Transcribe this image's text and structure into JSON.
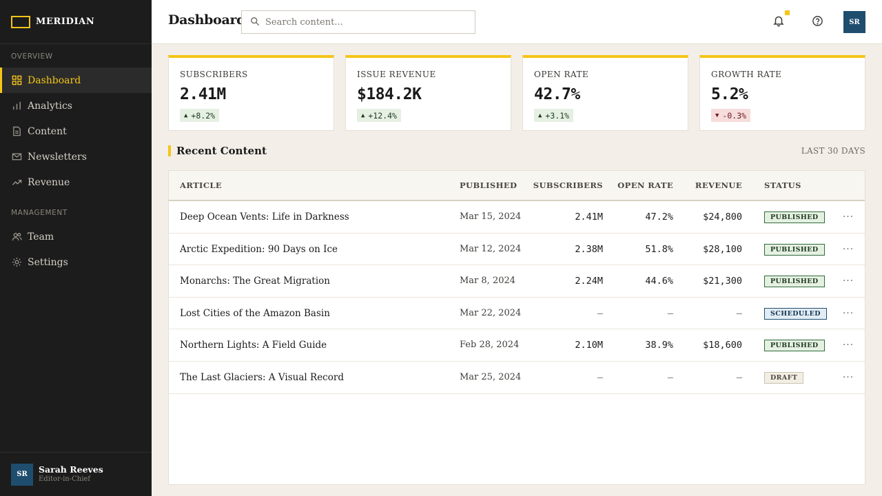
{
  "brand": {
    "name": "MERIDIAN"
  },
  "sidebar": {
    "section_overview": "OVERVIEW",
    "section_management": "MANAGEMENT",
    "overview_items": [
      {
        "label": "Dashboard",
        "icon": "grid-icon",
        "active": true
      },
      {
        "label": "Analytics",
        "icon": "bar-chart-icon"
      },
      {
        "label": "Content",
        "icon": "document-icon"
      },
      {
        "label": "Newsletters",
        "icon": "mail-icon"
      },
      {
        "label": "Revenue",
        "icon": "trend-up-icon"
      }
    ],
    "management_items": [
      {
        "label": "Team",
        "icon": "users-icon"
      },
      {
        "label": "Settings",
        "icon": "gear-icon"
      }
    ],
    "user": {
      "initials": "SR",
      "name": "Sarah Reeves",
      "role": "Editor-in-Chief"
    }
  },
  "header": {
    "title": "Dashboard",
    "search_placeholder": "Search content...",
    "avatar_initials": "SR"
  },
  "stats": [
    {
      "label": "SUBSCRIBERS",
      "value": "2.41M",
      "delta": "+8.2%",
      "direction": "up"
    },
    {
      "label": "ISSUE REVENUE",
      "value": "$184.2K",
      "delta": "+12.4%",
      "direction": "up"
    },
    {
      "label": "OPEN RATE",
      "value": "42.7%",
      "delta": "+3.1%",
      "direction": "up"
    },
    {
      "label": "GROWTH RATE",
      "value": "5.2%",
      "delta": "-0.3%",
      "direction": "down"
    }
  ],
  "recent": {
    "title": "Recent Content",
    "range": "LAST 30 DAYS",
    "columns": {
      "article": "ARTICLE",
      "published": "PUBLISHED",
      "subscribers": "SUBSCRIBERS",
      "open_rate": "OPEN RATE",
      "revenue": "REVENUE",
      "status": "STATUS"
    },
    "rows": [
      {
        "article": "Deep Ocean Vents: Life in Darkness",
        "published": "Mar 15, 2024",
        "subscribers": "2.41M",
        "open_rate": "47.2%",
        "revenue": "$24,800",
        "status": "PUBLISHED",
        "status_kind": "published"
      },
      {
        "article": "Arctic Expedition: 90 Days on Ice",
        "published": "Mar 12, 2024",
        "subscribers": "2.38M",
        "open_rate": "51.8%",
        "revenue": "$28,100",
        "status": "PUBLISHED",
        "status_kind": "published"
      },
      {
        "article": "Monarchs: The Great Migration",
        "published": "Mar 8, 2024",
        "subscribers": "2.24M",
        "open_rate": "44.6%",
        "revenue": "$21,300",
        "status": "PUBLISHED",
        "status_kind": "published"
      },
      {
        "article": "Lost Cities of the Amazon Basin",
        "published": "Mar 22, 2024",
        "subscribers": "–",
        "open_rate": "–",
        "revenue": "–",
        "status": "SCHEDULED",
        "status_kind": "scheduled"
      },
      {
        "article": "Northern Lights: A Field Guide",
        "published": "Feb 28, 2024",
        "subscribers": "2.10M",
        "open_rate": "38.9%",
        "revenue": "$18,600",
        "status": "PUBLISHED",
        "status_kind": "published"
      },
      {
        "article": "The Last Glaciers: A Visual Record",
        "published": "Mar 25, 2024",
        "subscribers": "–",
        "open_rate": "–",
        "revenue": "–",
        "status": "DRAFT",
        "status_kind": "draft"
      }
    ],
    "row_action_icon": "more-horizontal-icon"
  },
  "colors": {
    "accent": "#f5c518",
    "sidebar_bg": "#1c1c1c",
    "avatar_bg": "#1f4d6e",
    "positive_bg": "#e5f0e3",
    "negative_bg": "#f7dcdc"
  }
}
